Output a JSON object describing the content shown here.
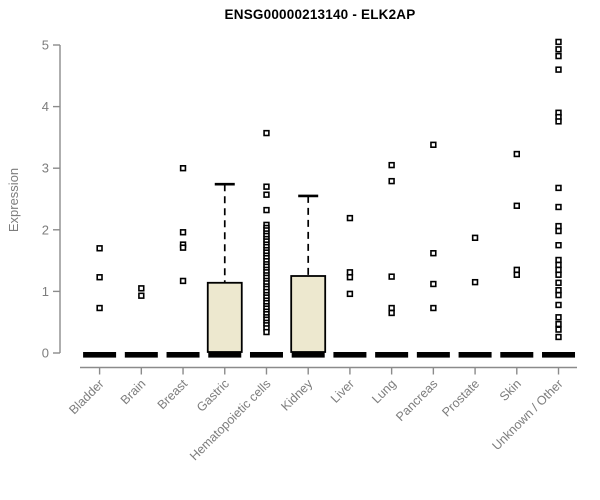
{
  "chart_data": {
    "type": "boxplot",
    "title": "ENSG00000213140 - ELK2AP",
    "ylabel": "Expression",
    "xlabel": "",
    "ylim": [
      0,
      5
    ],
    "yticks": [
      0,
      1,
      2,
      3,
      4,
      5
    ],
    "grid": false,
    "legend": null,
    "categories": [
      "Bladder",
      "Brain",
      "Breast",
      "Gastric",
      "Hematopoietic cells",
      "Kidney",
      "Liver",
      "Lung",
      "Pancreas",
      "Prostate",
      "Skin",
      "Unknown / Other"
    ],
    "boxes": [
      {
        "category": "Bladder",
        "min": 0,
        "q1": 0,
        "median": 0,
        "q3": 0,
        "whisker_high": 0,
        "outliers": [
          1.7,
          1.23,
          0.73
        ]
      },
      {
        "category": "Brain",
        "min": 0,
        "q1": 0,
        "median": 0,
        "q3": 0,
        "whisker_high": 0,
        "outliers": [
          1.05,
          0.93
        ]
      },
      {
        "category": "Breast",
        "min": 0,
        "q1": 0,
        "median": 0,
        "q3": 0,
        "whisker_high": 0,
        "outliers": [
          3.0,
          1.96,
          1.76,
          1.71,
          1.17
        ]
      },
      {
        "category": "Gastric",
        "min": 0,
        "q1": 0,
        "median": 0,
        "q3": 1.14,
        "whisker_high": 2.74,
        "outliers": []
      },
      {
        "category": "Hematopoietic cells",
        "min": 0,
        "q1": 0,
        "median": 0,
        "q3": 0,
        "whisker_high": 0,
        "outliers": [
          3.57,
          2.7,
          2.57,
          2.32,
          2.08,
          2.03,
          1.99,
          1.94,
          1.9,
          1.85,
          1.81,
          1.76,
          1.72,
          1.67,
          1.63,
          1.58,
          1.54,
          1.49,
          1.44,
          1.4,
          1.35,
          1.31,
          1.26,
          1.22,
          1.17,
          1.13,
          1.08,
          1.04,
          0.99,
          0.94,
          0.9,
          0.85,
          0.81,
          0.76,
          0.72,
          0.67,
          0.63,
          0.58,
          0.54,
          0.49,
          0.45,
          0.4,
          0.34
        ]
      },
      {
        "category": "Kidney",
        "min": 0,
        "q1": 0,
        "median": 0,
        "q3": 1.25,
        "whisker_high": 2.55,
        "outliers": []
      },
      {
        "category": "Liver",
        "min": 0,
        "q1": 0,
        "median": 0,
        "q3": 0,
        "whisker_high": 0,
        "outliers": [
          2.19,
          1.31,
          1.23,
          0.96
        ]
      },
      {
        "category": "Lung",
        "min": 0,
        "q1": 0,
        "median": 0,
        "q3": 0,
        "whisker_high": 0,
        "outliers": [
          3.05,
          2.79,
          1.24,
          0.73,
          0.65
        ]
      },
      {
        "category": "Pancreas",
        "min": 0,
        "q1": 0,
        "median": 0,
        "q3": 0,
        "whisker_high": 0,
        "outliers": [
          3.38,
          1.62,
          1.12,
          0.73
        ]
      },
      {
        "category": "Prostate",
        "min": 0,
        "q1": 0,
        "median": 0,
        "q3": 0,
        "whisker_high": 0,
        "outliers": [
          1.87,
          1.15
        ]
      },
      {
        "category": "Skin",
        "min": 0,
        "q1": 0,
        "median": 0,
        "q3": 0,
        "whisker_high": 0,
        "outliers": [
          3.23,
          2.39,
          1.35,
          1.27
        ]
      },
      {
        "category": "Unknown / Other",
        "min": 0,
        "q1": 0,
        "median": 0,
        "q3": 0,
        "whisker_high": 0,
        "outliers": [
          5.05,
          4.93,
          4.82,
          4.6,
          3.9,
          3.83,
          3.76,
          2.68,
          2.37,
          2.06,
          1.98,
          1.75,
          1.51,
          1.43,
          1.35,
          1.27,
          1.14,
          1.02,
          0.94,
          0.78,
          0.58,
          0.47,
          0.38,
          0.26
        ]
      }
    ],
    "colors": {
      "box_fill": "#EDE8CF",
      "box_stroke": "#000000",
      "median_bar": "#000000",
      "outlier_stroke": "#000000",
      "outlier_fill": "#ffffff",
      "axis_line": "#8b8b8b",
      "axis_text": "#7d7d7d",
      "title_text": "#000000"
    }
  }
}
